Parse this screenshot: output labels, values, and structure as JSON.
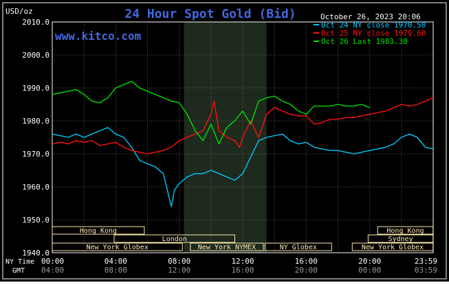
{
  "chart_data": {
    "type": "line",
    "title": "24 Hour Spot Gold (Bid)",
    "watermark": "www.kitco.com",
    "timestamp": "October 26, 2023 20:06",
    "ylabel": "USD/oz",
    "ylim": [
      1940,
      2010
    ],
    "y_ticks": [
      "2010.0",
      "2000.0",
      "1990.0",
      "1980.0",
      "1970.0",
      "1960.0",
      "1950.0",
      "1940.0"
    ],
    "xlim": [
      0,
      24
    ],
    "x_ticks_ny": [
      "00:00",
      "04:00",
      "08:00",
      "12:00",
      "16:00",
      "20:00",
      "23:59"
    ],
    "x_ticks_gmt": [
      "04:00",
      "08:00",
      "12:00",
      "16:00",
      "20:00",
      "00:00",
      "03:59"
    ],
    "axis_row_labels": [
      "NY Time",
      "GMT"
    ],
    "grid": true,
    "legend_position": "top-right",
    "colors": {
      "background": "#000000",
      "grid": "#5a5a5a",
      "title": "#4169e1",
      "watermark": "#4169e1",
      "shade": "#1e2a1e",
      "session_bar": "#ffeab0"
    },
    "shaded_region": [
      8.3,
      13.5
    ],
    "series": [
      {
        "name": "Oct 24 NY close 1970.50",
        "color": "#00c8ff",
        "x": [
          0,
          0.5,
          1,
          1.5,
          2,
          2.5,
          3,
          3.5,
          4,
          4.5,
          5,
          5.5,
          6,
          6.5,
          7,
          7.4,
          7.5,
          7.7,
          8,
          8.5,
          9,
          9.5,
          10,
          10.5,
          11,
          11.5,
          12,
          12.5,
          13,
          13.5,
          14,
          14.5,
          15,
          15.5,
          16,
          16.5,
          17,
          17.5,
          18,
          18.5,
          19,
          19.5,
          20,
          20.5,
          21,
          21.5,
          22,
          22.5,
          23,
          23.5,
          24
        ],
        "values": [
          1976,
          1975.5,
          1975,
          1976,
          1975,
          1976,
          1977,
          1978,
          1976,
          1975,
          1972,
          1968,
          1967,
          1966,
          1964,
          1956,
          1954,
          1959,
          1961,
          1963,
          1964,
          1964,
          1965,
          1964,
          1963,
          1962,
          1964,
          1969,
          1974,
          1975,
          1975.5,
          1976,
          1974,
          1973,
          1973.5,
          1972,
          1971.5,
          1971,
          1971,
          1970.5,
          1970,
          1970.5,
          1971,
          1971.5,
          1972,
          1973,
          1975,
          1976,
          1975,
          1972,
          1971.5
        ]
      },
      {
        "name": "Oct 25 NY close 1979.60",
        "color": "#ff1010",
        "x": [
          0,
          0.5,
          1,
          1.5,
          2,
          2.5,
          3,
          3.5,
          4,
          4.5,
          5,
          5.5,
          6,
          6.5,
          7,
          7.5,
          8,
          8.5,
          9,
          9.5,
          10,
          10.2,
          10.5,
          11,
          11.5,
          11.8,
          12,
          12.5,
          13,
          13.5,
          14,
          14.5,
          15,
          15.5,
          16,
          16.5,
          17,
          17.5,
          18,
          18.5,
          19,
          19.5,
          20,
          20.5,
          21,
          21.5,
          22,
          22.5,
          23,
          23.5,
          24
        ],
        "values": [
          1973,
          1973.5,
          1973,
          1974,
          1973.5,
          1974,
          1972.5,
          1973,
          1973.5,
          1972,
          1971,
          1970.5,
          1970,
          1970.5,
          1971,
          1972,
          1974,
          1975,
          1976,
          1977,
          1982,
          1986,
          1977,
          1975,
          1974,
          1972,
          1975,
          1980,
          1975,
          1982,
          1984,
          1983,
          1982,
          1981.5,
          1981.5,
          1979,
          1979.5,
          1980.5,
          1980.5,
          1981,
          1981,
          1981.5,
          1982,
          1982.5,
          1983,
          1984,
          1985,
          1984.5,
          1985,
          1986,
          1987
        ]
      },
      {
        "name": "Oct 26 Last 1983.30",
        "color": "#00e000",
        "x": [
          0,
          0.5,
          1,
          1.5,
          2,
          2.5,
          3,
          3.5,
          4,
          4.5,
          5,
          5.5,
          6,
          6.5,
          7,
          7.5,
          8,
          8.5,
          9,
          9.5,
          10,
          10.5,
          11,
          11.5,
          12,
          12.5,
          13,
          13.5,
          14,
          14.5,
          15,
          15.5,
          16,
          16.5,
          17,
          17.5,
          18,
          18.5,
          19,
          19.5,
          20
        ],
        "values": [
          1988,
          1988.5,
          1989,
          1989.5,
          1988,
          1986,
          1985.5,
          1987,
          1990,
          1991,
          1992,
          1990,
          1989,
          1988,
          1987,
          1986,
          1985.5,
          1982,
          1977,
          1974,
          1979,
          1973,
          1978,
          1980,
          1983,
          1979,
          1986,
          1987,
          1987.5,
          1986,
          1985,
          1983,
          1982,
          1984.5,
          1984.5,
          1984.5,
          1985,
          1984.5,
          1984.5,
          1985,
          1984
        ]
      }
    ],
    "sessions": [
      {
        "name": "Hong Kong",
        "start": 0,
        "end": 5.8,
        "row": 0
      },
      {
        "name": "London",
        "start": 3.9,
        "end": 11.5,
        "row": 1
      },
      {
        "name": "New York Globex",
        "start": 0,
        "end": 8.2,
        "row": 2
      },
      {
        "name": "New York NYMEX",
        "start": 8.7,
        "end": 13.3,
        "row": 2
      },
      {
        "name": "NY Globex",
        "start": 13.4,
        "end": 17.6,
        "row": 2
      },
      {
        "name": "Hong Kong",
        "start": 20.5,
        "end": 23.99,
        "row": 0
      },
      {
        "name": "Sydney",
        "start": 19.9,
        "end": 23.99,
        "row": 1
      },
      {
        "name": "New York Globex",
        "start": 18.9,
        "end": 23.99,
        "row": 2
      }
    ]
  }
}
